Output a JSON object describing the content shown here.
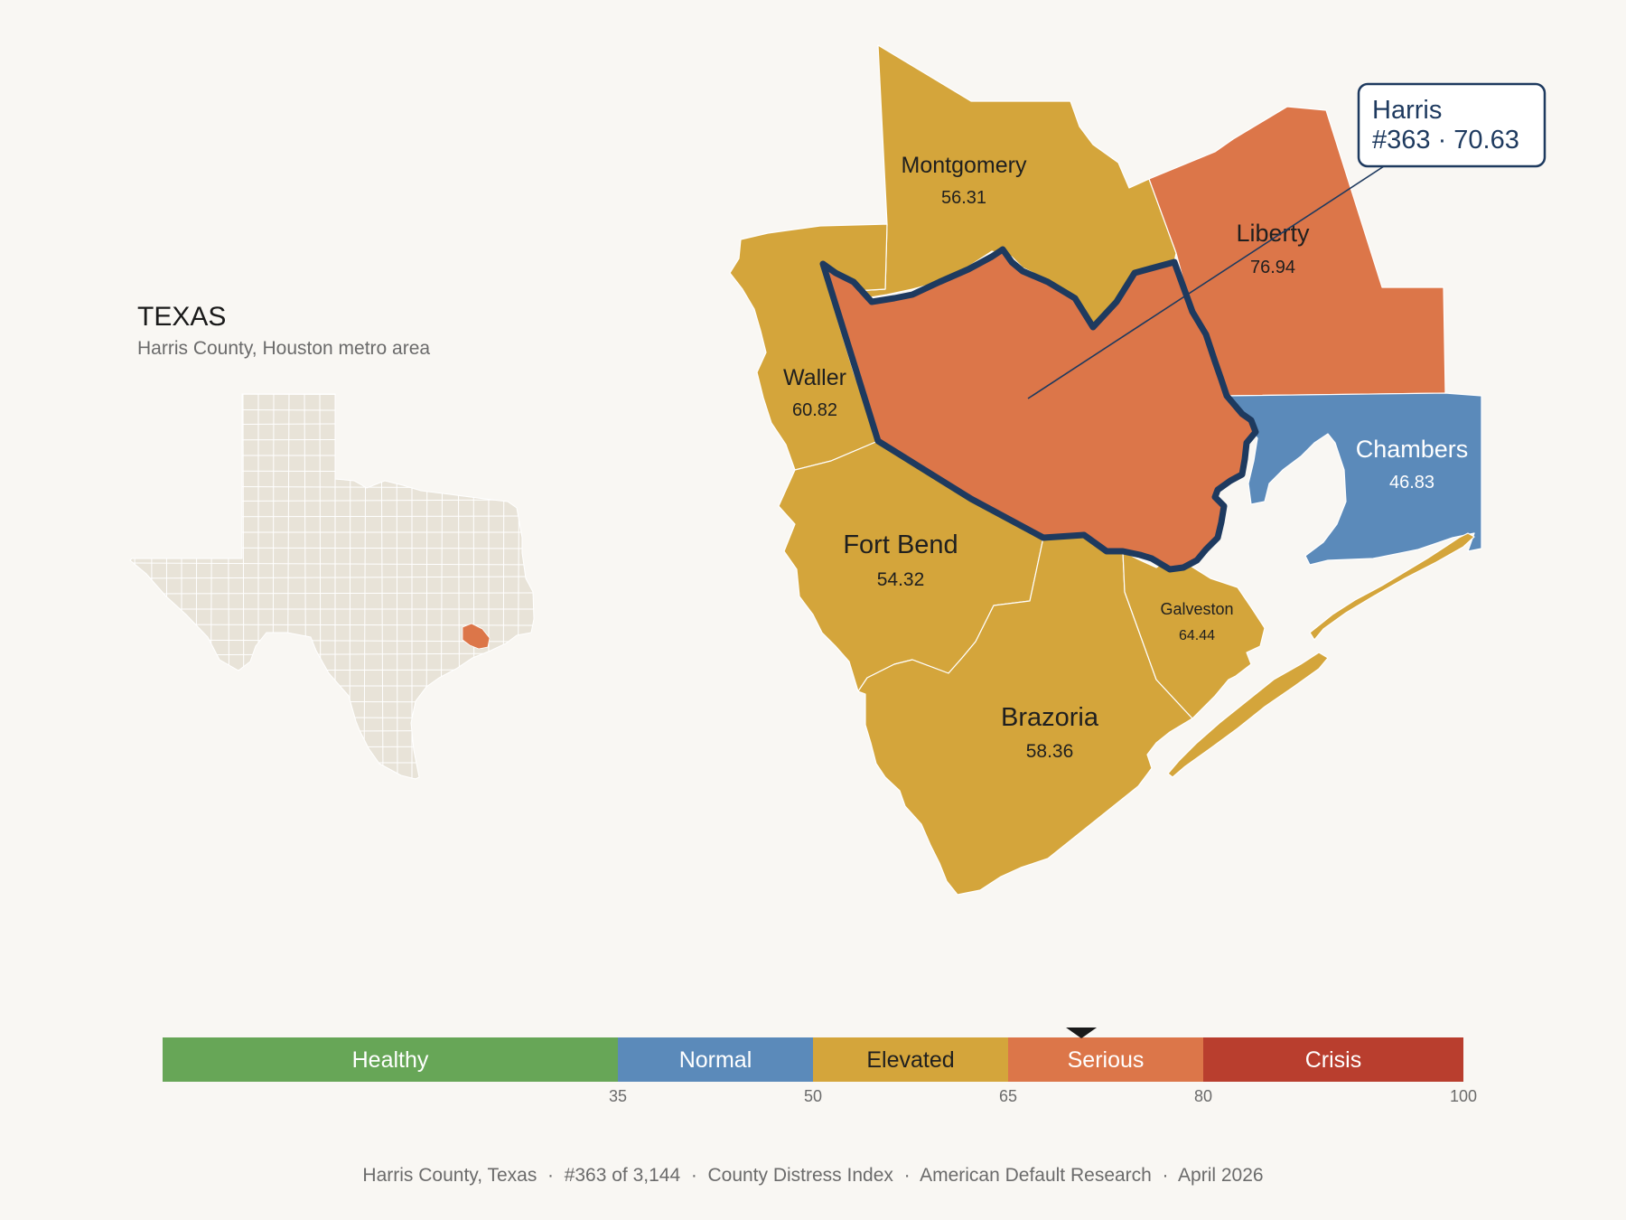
{
  "state_panel": {
    "title": "TEXAS",
    "subtitle": "Harris County, Houston metro area"
  },
  "colors": {
    "background": "#f9f7f3",
    "healthy": "#67a657",
    "normal": "#5b8aba",
    "elevated": "#d4a53b",
    "serious": "#dc7649",
    "crisis": "#b93e2e",
    "outline": "#1e3a5f",
    "state_county_fill": "#e8e3d8"
  },
  "counties": [
    {
      "id": "harris",
      "name": "Harris",
      "value": "70.63",
      "category": "serious",
      "highlight": true
    },
    {
      "id": "montgomery",
      "name": "Montgomery",
      "value": "56.31",
      "category": "elevated"
    },
    {
      "id": "liberty",
      "name": "Liberty",
      "value": "76.94",
      "category": "serious"
    },
    {
      "id": "waller",
      "name": "Waller",
      "value": "60.82",
      "category": "elevated"
    },
    {
      "id": "chambers",
      "name": "Chambers",
      "value": "46.83",
      "category": "normal"
    },
    {
      "id": "fortbend",
      "name": "Fort Bend",
      "value": "54.32",
      "category": "elevated"
    },
    {
      "id": "galveston",
      "name": "Galveston",
      "value": "64.44",
      "category": "elevated"
    },
    {
      "id": "brazoria",
      "name": "Brazoria",
      "value": "58.36",
      "category": "elevated"
    }
  ],
  "callout": {
    "line1": "Harris",
    "line2": "#363 · 70.63"
  },
  "scale": {
    "min": 0,
    "max": 100,
    "marker_value": 70.63,
    "segments": [
      {
        "label": "Healthy",
        "from": 0,
        "to": 35,
        "color": "#67a657",
        "text_color": "#ffffff"
      },
      {
        "label": "Normal",
        "from": 35,
        "to": 50,
        "color": "#5b8aba",
        "text_color": "#ffffff"
      },
      {
        "label": "Elevated",
        "from": 50,
        "to": 65,
        "color": "#d4a53b",
        "text_color": "#1f1f1f"
      },
      {
        "label": "Serious",
        "from": 65,
        "to": 80,
        "color": "#dc7649",
        "text_color": "#ffffff"
      },
      {
        "label": "Crisis",
        "from": 80,
        "to": 100,
        "color": "#b93e2e",
        "text_color": "#ffffff"
      }
    ],
    "ticks": [
      "35",
      "50",
      "65",
      "80",
      "100"
    ]
  },
  "footer": "Harris County, Texas  ·  #363 of 3,144  ·  County Distress Index  ·  American Default Research  ·  April 2026"
}
